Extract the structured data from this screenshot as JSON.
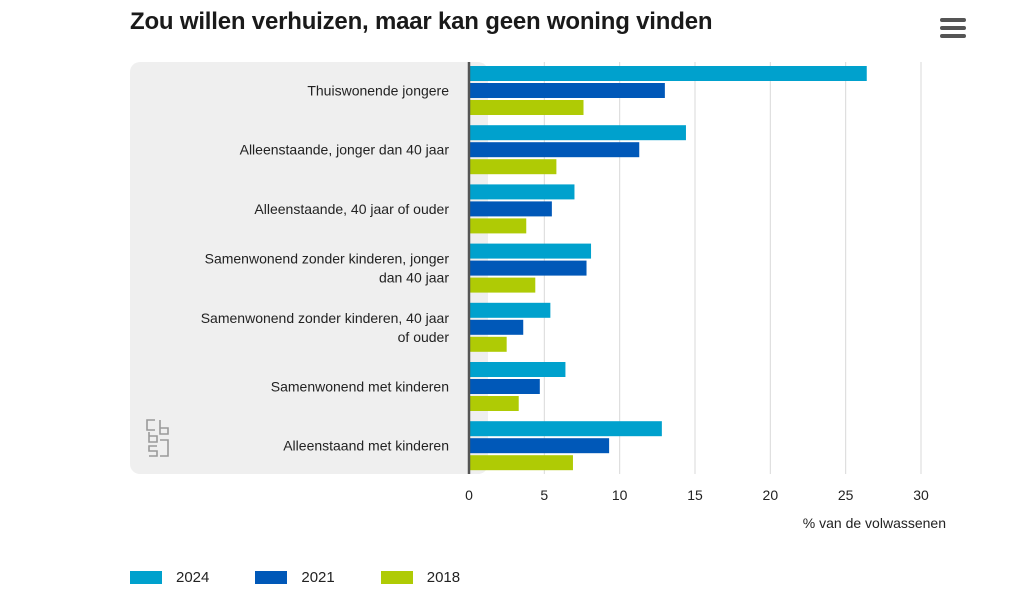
{
  "title": "Zou willen verhuizen, maar kan geen woning vinden",
  "menu_icon": "hamburger-menu-icon",
  "logo_icon": "cbs-logo-icon",
  "colors": {
    "2024": "#00a1cd",
    "2021": "#0058b8",
    "2018": "#afcb05",
    "panel": "#efefef",
    "grid": "#d9d9d9",
    "axis": "#555555"
  },
  "chart_data": {
    "type": "bar",
    "orientation": "horizontal",
    "title": "Zou willen verhuizen, maar kan geen woning vinden",
    "categories": [
      [
        "Thuiswonende jongere"
      ],
      [
        "Alleenstaande, jonger dan 40 jaar"
      ],
      [
        "Alleenstaande, 40 jaar of ouder"
      ],
      [
        "Samenwonend zonder kinderen, jonger",
        "dan 40 jaar"
      ],
      [
        "Samenwonend zonder kinderen, 40 jaar",
        "of ouder"
      ],
      [
        "Samenwonend met kinderen"
      ],
      [
        "Alleenstaand met kinderen"
      ]
    ],
    "series": [
      {
        "name": "2024",
        "color": "#00a1cd",
        "values": [
          26.4,
          14.4,
          7.0,
          8.1,
          5.4,
          6.4,
          12.8
        ]
      },
      {
        "name": "2021",
        "color": "#0058b8",
        "values": [
          13.0,
          11.3,
          5.5,
          7.8,
          3.6,
          4.7,
          9.3
        ]
      },
      {
        "name": "2018",
        "color": "#afcb05",
        "values": [
          7.6,
          5.8,
          3.8,
          4.4,
          2.5,
          3.3,
          6.9
        ]
      }
    ],
    "xlabel": "% van de volwassenen",
    "xlim": [
      0,
      30
    ],
    "xticks": [
      0,
      5,
      10,
      15,
      20,
      25,
      30
    ],
    "grid": true
  },
  "legend": [
    {
      "label": "2024",
      "color": "#00a1cd"
    },
    {
      "label": "2021",
      "color": "#0058b8"
    },
    {
      "label": "2018",
      "color": "#afcb05"
    }
  ]
}
